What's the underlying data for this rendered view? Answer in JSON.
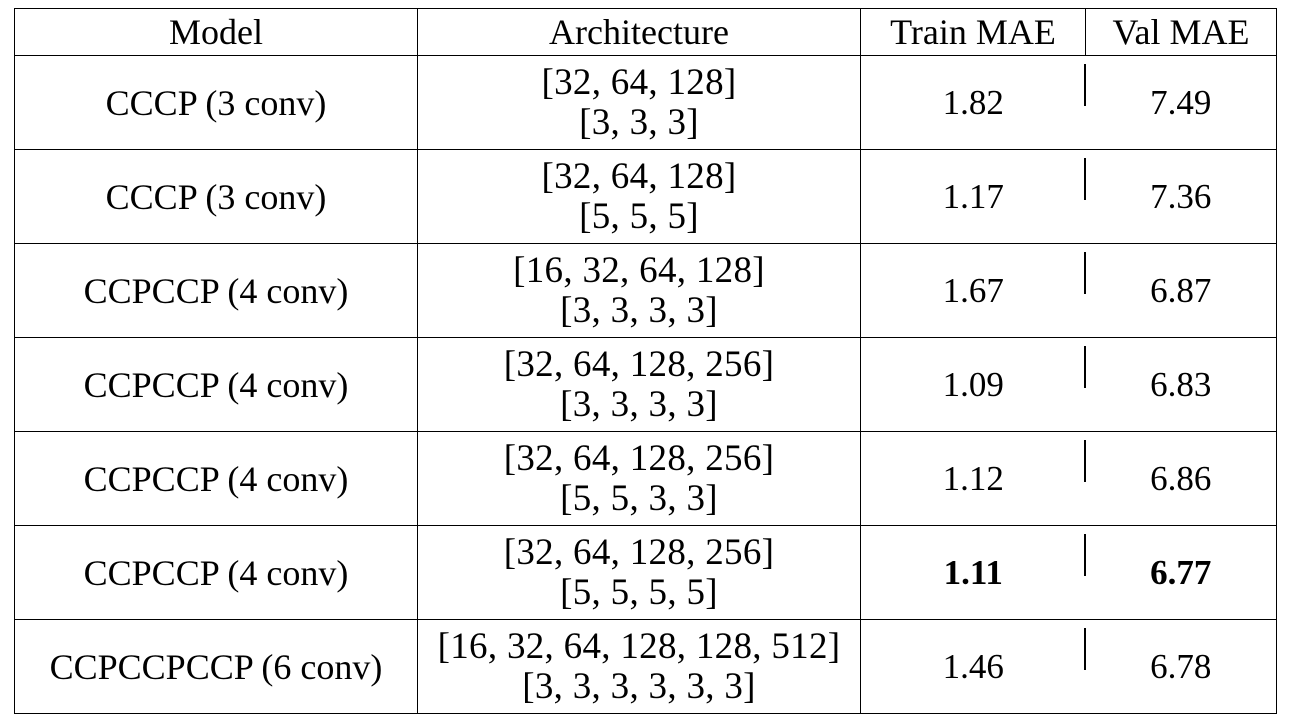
{
  "table": {
    "headers": [
      "Model",
      "Architecture",
      "Train MAE",
      "Val MAE"
    ],
    "rows": [
      {
        "model": "CCCP (3 conv)",
        "arch_filters": "[32, 64, 128]",
        "arch_kernels": "[3, 3, 3]",
        "train_mae": "1.82",
        "val_mae": "7.49",
        "bold": false
      },
      {
        "model": "CCCP (3 conv)",
        "arch_filters": "[32, 64, 128]",
        "arch_kernels": "[5, 5, 5]",
        "train_mae": "1.17",
        "val_mae": "7.36",
        "bold": false
      },
      {
        "model": "CCPCCP (4 conv)",
        "arch_filters": "[16, 32, 64, 128]",
        "arch_kernels": "[3, 3, 3, 3]",
        "train_mae": "1.67",
        "val_mae": "6.87",
        "bold": false
      },
      {
        "model": "CCPCCP (4 conv)",
        "arch_filters": "[32, 64, 128, 256]",
        "arch_kernels": "[3, 3, 3, 3]",
        "train_mae": "1.09",
        "val_mae": "6.83",
        "bold": false
      },
      {
        "model": "CCPCCP (4 conv)",
        "arch_filters": "[32, 64, 128, 256]",
        "arch_kernels": "[5, 5, 3, 3]",
        "train_mae": "1.12",
        "val_mae": "6.86",
        "bold": false
      },
      {
        "model": "CCPCCP (4 conv)",
        "arch_filters": "[32, 64, 128, 256]",
        "arch_kernels": "[5, 5, 5, 5]",
        "train_mae": "1.11",
        "val_mae": "6.77",
        "bold": true
      },
      {
        "model": "CCPCCPCCP (6 conv)",
        "arch_filters": "[16, 32, 64, 128, 128, 512]",
        "arch_kernels": "[3, 3, 3, 3, 3, 3]",
        "train_mae": "1.46",
        "val_mae": "6.78",
        "bold": false
      }
    ]
  }
}
